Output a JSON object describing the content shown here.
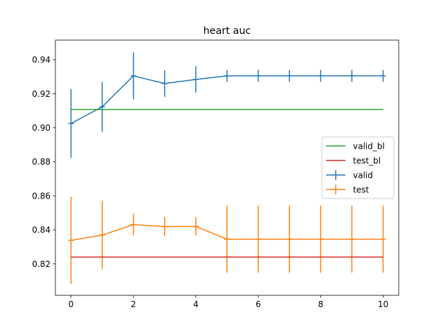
{
  "chart_data": {
    "type": "line",
    "title": "heart  auc",
    "xlabel": "",
    "ylabel": "",
    "xlim": [
      -0.5,
      10.5
    ],
    "ylim": [
      0.8015,
      0.9515
    ],
    "x_ticks": [
      0,
      2,
      4,
      6,
      8,
      10
    ],
    "y_ticks": [
      0.82,
      0.84,
      0.86,
      0.88,
      0.9,
      0.92,
      0.94
    ],
    "y_tick_labels": [
      "0.82",
      "0.84",
      "0.86",
      "0.88",
      "0.90",
      "0.92",
      "0.94"
    ],
    "grid": false,
    "legend_position": "center-right",
    "x": [
      0,
      1,
      2,
      3,
      4,
      5,
      6,
      7,
      8,
      9,
      10
    ],
    "baselines": [
      {
        "name": "valid_bl",
        "value": 0.9107,
        "color": "#2ca02c"
      },
      {
        "name": "test_bl",
        "value": 0.824,
        "color": "#d62728"
      }
    ],
    "series": [
      {
        "name": "valid",
        "color": "#1f77b4",
        "values": [
          0.9025,
          0.9123,
          0.9305,
          0.926,
          0.9284,
          0.9305,
          0.9305,
          0.9305,
          0.9305,
          0.9305,
          0.9305
        ],
        "errors": [
          0.0203,
          0.0147,
          0.0138,
          0.0078,
          0.0077,
          0.0035,
          0.0035,
          0.0035,
          0.0035,
          0.0035,
          0.0035
        ]
      },
      {
        "name": "test",
        "color": "#ff7f0e",
        "values": [
          0.8338,
          0.8369,
          0.8431,
          0.8419,
          0.842,
          0.8345,
          0.8345,
          0.8345,
          0.8345,
          0.8345,
          0.8345
        ],
        "errors": [
          0.0256,
          0.0201,
          0.0064,
          0.0056,
          0.0054,
          0.0197,
          0.0197,
          0.0197,
          0.0197,
          0.0197,
          0.0197
        ]
      }
    ]
  }
}
